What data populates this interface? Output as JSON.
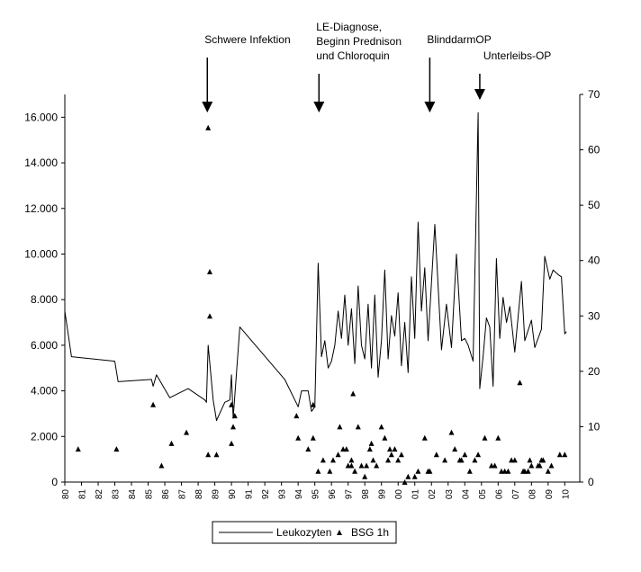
{
  "chart_data": {
    "type": "line",
    "title": "",
    "xlabel": "",
    "ylabel": "",
    "y2label": "",
    "xlim": [
      80,
      110.9
    ],
    "ylim": [
      0,
      17000
    ],
    "y2lim": [
      0,
      70
    ],
    "x_tick_labels": [
      "80",
      "81",
      "82",
      "83",
      "84",
      "85",
      "86",
      "87",
      "88",
      "89",
      "90",
      "91",
      "92",
      "93",
      "94",
      "95",
      "96",
      "97",
      "98",
      "99",
      "00",
      "01",
      "02",
      "03",
      "04",
      "05",
      "06",
      "07",
      "08",
      "09",
      "10"
    ],
    "y_tick_labels": [
      "0",
      "2.000",
      "4.000",
      "6.000",
      "8.000",
      "10.000",
      "12.000",
      "14.000",
      "16.000"
    ],
    "y2_tick_labels": [
      "0",
      "10",
      "20",
      "30",
      "40",
      "50",
      "60",
      "70"
    ],
    "grid": false,
    "legend_position": "bottom",
    "annotations": [
      {
        "lines": [
          "Schwere Infektion"
        ],
        "x": 88.55
      },
      {
        "lines": [
          "LE-Diagnose,",
          "Beginn Prednison",
          "und Chloroquin"
        ],
        "x": 95.25
      },
      {
        "lines": [
          "BlinddarmOP"
        ],
        "x": 101.9
      },
      {
        "lines": [
          "Unterleibs-OP"
        ],
        "x": 104.9
      }
    ],
    "series": [
      {
        "name": "Leukozyten",
        "axis": "left",
        "style": "line",
        "color": "#000000",
        "x": [
          80,
          80.4,
          83,
          83.2,
          85.2,
          85.3,
          85.5,
          86.3,
          87.4,
          88.4,
          88.5,
          88.6,
          88.9,
          89.1,
          89.6,
          89.9,
          90.0,
          90.1,
          90.5,
          93.2,
          94.0,
          94.2,
          94.6,
          94.8,
          95.0,
          95.2,
          95.4,
          95.6,
          95.8,
          96.0,
          96.2,
          96.4,
          96.6,
          96.8,
          97.0,
          97.2,
          97.4,
          97.6,
          97.8,
          98.0,
          98.2,
          98.4,
          98.6,
          98.8,
          99.0,
          99.2,
          99.4,
          99.6,
          99.8,
          100.0,
          100.2,
          100.4,
          100.6,
          100.8,
          101.0,
          101.2,
          101.4,
          101.6,
          101.8,
          102.0,
          102.2,
          102.6,
          102.9,
          103.2,
          103.5,
          103.8,
          104.0,
          104.2,
          104.5,
          104.8,
          104.9,
          105.1,
          105.3,
          105.5,
          105.7,
          105.9,
          106.1,
          106.3,
          106.5,
          106.7,
          107.0,
          107.4,
          107.6,
          108.0,
          108.2,
          108.6,
          108.8,
          109.1,
          109.3,
          109.6,
          109.8,
          110.0,
          110.1
        ],
        "values": [
          7500,
          5500,
          5300,
          4400,
          4500,
          4200,
          4700,
          3700,
          4100,
          3600,
          3500,
          6000,
          3600,
          2700,
          3500,
          3600,
          4700,
          2800,
          6800,
          4500,
          3300,
          4000,
          4000,
          3100,
          3300,
          9600,
          5500,
          6200,
          5000,
          5300,
          6000,
          7500,
          6300,
          8200,
          6000,
          7600,
          5200,
          8600,
          6000,
          5400,
          7800,
          5000,
          8200,
          4600,
          6200,
          9300,
          5400,
          7300,
          6400,
          8300,
          5100,
          7000,
          4800,
          9000,
          6300,
          11400,
          7500,
          9400,
          6200,
          8700,
          11300,
          5800,
          7800,
          5900,
          10000,
          6200,
          6300,
          6000,
          5300,
          16200,
          4100,
          5500,
          7200,
          6800,
          4200,
          9800,
          6300,
          8100,
          7000,
          7700,
          5700,
          8800,
          6200,
          7100,
          5900,
          6700,
          9900,
          8900,
          9300,
          9100,
          9000,
          6500,
          6600
        ]
      },
      {
        "name": "BSG 1h",
        "axis": "right",
        "style": "marker",
        "marker": "triangle",
        "color": "#000000",
        "x": [
          80.8,
          83.1,
          85.3,
          85.8,
          86.4,
          87.3,
          88.6,
          88.6,
          88.7,
          88.7,
          89.1,
          90.0,
          90.0,
          90.1,
          90.2,
          93.9,
          94.0,
          94.6,
          94.9,
          94.9,
          95.2,
          95.5,
          95.9,
          96.1,
          96.4,
          96.5,
          96.7,
          96.9,
          97.0,
          97.2,
          97.2,
          97.3,
          97.4,
          97.6,
          97.8,
          98.0,
          98.1,
          98.3,
          98.4,
          98.5,
          98.7,
          99.0,
          99.2,
          99.4,
          99.5,
          99.6,
          99.8,
          100.0,
          100.2,
          100.4,
          100.6,
          101.0,
          101.2,
          101.6,
          101.8,
          101.9,
          102.3,
          102.8,
          103.2,
          103.4,
          103.7,
          103.8,
          104.0,
          104.3,
          104.6,
          104.8,
          105.2,
          105.6,
          105.8,
          106.0,
          106.2,
          106.4,
          106.6,
          106.8,
          107.0,
          107.3,
          107.5,
          107.6,
          107.8,
          107.9,
          108.0,
          108.4,
          108.5,
          108.6,
          108.7,
          109.0,
          109.2,
          109.7,
          110.0
        ],
        "values": [
          6,
          6,
          14,
          3,
          7,
          9,
          5,
          64,
          38,
          30,
          5,
          14,
          7,
          10,
          12,
          12,
          8,
          6,
          8,
          14,
          2,
          4,
          2,
          4,
          5,
          10,
          6,
          6,
          3,
          4,
          3,
          16,
          2,
          10,
          3,
          1,
          3,
          6,
          7,
          4,
          3,
          10,
          8,
          4,
          6,
          5,
          6,
          4,
          5,
          0,
          1,
          1,
          2,
          8,
          2,
          2,
          5,
          4,
          9,
          6,
          4,
          4,
          5,
          2,
          4,
          5,
          8,
          3,
          3,
          8,
          2,
          2,
          2,
          4,
          4,
          18,
          2,
          2,
          2,
          4,
          3,
          3,
          3,
          4,
          4,
          2,
          3,
          5,
          5
        ]
      }
    ]
  }
}
